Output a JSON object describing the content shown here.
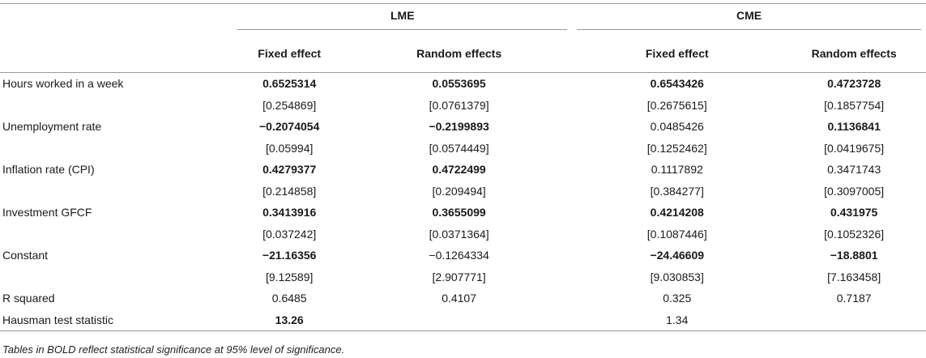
{
  "groups": [
    "LME",
    "CME"
  ],
  "columns": [
    "Fixed effect",
    "Random effects",
    "Fixed effect",
    "Random effects"
  ],
  "rows": [
    {
      "label": "Hours worked in a week",
      "vals": [
        "0.6525314",
        "0.0553695",
        "0.6543426",
        "0.4723728"
      ],
      "se": [
        "[0.254869]",
        "[0.0761379]",
        "[0.2675615]",
        "[0.1857754]"
      ],
      "bold": [
        true,
        true,
        true,
        true
      ]
    },
    {
      "label": "Unemployment rate",
      "vals": [
        "−0.2074054",
        "−0.2199893",
        "0.0485426",
        "0.1136841"
      ],
      "se": [
        "[0.05994]",
        "[0.0574449]",
        "[0.1252462]",
        "[0.0419675]"
      ],
      "bold": [
        true,
        true,
        false,
        true
      ]
    },
    {
      "label": "Inflation rate (CPI)",
      "vals": [
        "0.4279377",
        "0.4722499",
        "0.1117892",
        "0.3471743"
      ],
      "se": [
        "[0.214858]",
        "[0.209494]",
        "[0.384277]",
        "[0.3097005]"
      ],
      "bold": [
        true,
        true,
        false,
        false
      ]
    },
    {
      "label": "Investment GFCF",
      "vals": [
        "0.3413916",
        "0.3655099",
        "0.4214208",
        "0.431975"
      ],
      "se": [
        "[0.037242]",
        "[0.0371364]",
        "[0.1087446]",
        "[0.1052326]"
      ],
      "bold": [
        true,
        true,
        true,
        true
      ]
    },
    {
      "label": "Constant",
      "vals": [
        "−21.16356",
        "−0.1264334",
        "−24.46609",
        "−18.8801"
      ],
      "se": [
        "[9.12589]",
        "[2.907771]",
        "[9.030853]",
        "[7.163458]"
      ],
      "bold": [
        true,
        false,
        true,
        true
      ]
    }
  ],
  "rsquared": {
    "label": "R squared",
    "vals": [
      "0.6485",
      "0.4107",
      "0.325",
      "0.7187"
    ]
  },
  "hausman": {
    "label": "Hausman test statistic",
    "vals": [
      "13.26",
      "",
      "1.34",
      ""
    ],
    "bold": [
      true,
      false,
      false,
      false
    ]
  },
  "note": "Tables in BOLD reflect statistical significance at 95% level of significance."
}
